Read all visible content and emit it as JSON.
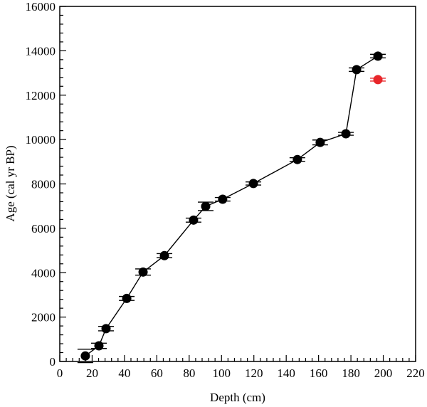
{
  "chart_data": {
    "type": "scatter",
    "title": "",
    "xlabel": "Depth (cm)",
    "ylabel": "Age (cal yr BP)",
    "xlim": [
      0,
      220
    ],
    "ylim": [
      0,
      16000
    ],
    "x_ticks": [
      0,
      20,
      40,
      60,
      80,
      100,
      120,
      140,
      160,
      180,
      200,
      220
    ],
    "y_ticks": [
      0,
      2000,
      4000,
      6000,
      8000,
      10000,
      12000,
      14000,
      16000
    ],
    "x_minor_step": 4,
    "y_minor_step": 400,
    "grid": false,
    "legend": null,
    "series": [
      {
        "name": "age-depth model",
        "color": "#000000",
        "connected": true,
        "points": [
          {
            "depth": 15.8,
            "age": 250,
            "err": 300
          },
          {
            "depth": 24.2,
            "age": 705,
            "err": 120
          },
          {
            "depth": 28.6,
            "age": 1480,
            "err": 100
          },
          {
            "depth": 41.4,
            "age": 2840,
            "err": 90
          },
          {
            "depth": 51.5,
            "age": 4030,
            "err": 140
          },
          {
            "depth": 64.7,
            "age": 4770,
            "err": 90
          },
          {
            "depth": 82.7,
            "age": 6370,
            "err": 90
          },
          {
            "depth": 90.2,
            "age": 6990,
            "err": 190
          },
          {
            "depth": 100.7,
            "age": 7310,
            "err": 80
          },
          {
            "depth": 119.7,
            "age": 8020,
            "err": 70
          },
          {
            "depth": 146.9,
            "age": 9100,
            "err": 80
          },
          {
            "depth": 161.0,
            "age": 9870,
            "err": 110
          },
          {
            "depth": 176.9,
            "age": 10260,
            "err": 40
          },
          {
            "depth": 183.5,
            "age": 13150,
            "err": 80
          },
          {
            "depth": 196.7,
            "age": 13760,
            "err": 80
          }
        ]
      },
      {
        "name": "outlier",
        "color": "#e8262a",
        "connected": false,
        "points": [
          {
            "depth": 196.7,
            "age": 12700,
            "err": 60
          }
        ]
      }
    ]
  }
}
